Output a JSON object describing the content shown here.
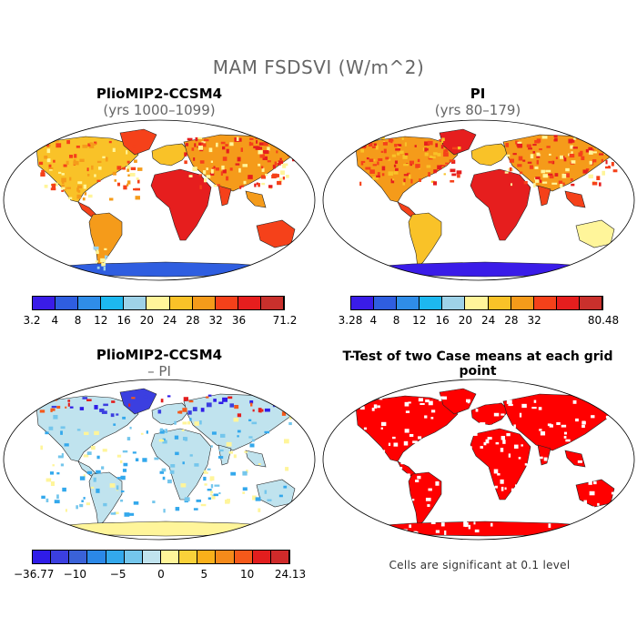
{
  "title": "MAM FSDSVI (W/m^2)",
  "panels": [
    {
      "title": "PlioMIP2-CCSM4",
      "subtitle": "(yrs 1000–1099)"
    },
    {
      "title": "PI",
      "subtitle": "(yrs 80–179)"
    },
    {
      "title": "PlioMIP2-CCSM4",
      "subtitle": "– PI"
    },
    {
      "title": "T-Test of two Case means at each grid point",
      "subtitle": ""
    }
  ],
  "note": "Cells are significant at 0.1 level",
  "chart_data": [
    {
      "type": "heatmap",
      "title": "PlioMIP2-CCSM4",
      "subtitle": "(yrs 1000–1099)",
      "colorbar": {
        "colors": [
          "#3a1ce8",
          "#2f5ee0",
          "#2f8de8",
          "#1db8f0",
          "#9ed2e8",
          "#fff59a",
          "#f9c228",
          "#f59b1a",
          "#f5411a",
          "#e61e1e",
          "#c9302c"
        ],
        "tick_labels": [
          "3.2",
          "4",
          "8",
          "12",
          "16",
          "20",
          "24",
          "28",
          "32",
          "36",
          "71.2"
        ]
      }
    },
    {
      "type": "heatmap",
      "title": "PI",
      "subtitle": "(yrs 80–179)",
      "colorbar": {
        "colors": [
          "#3a1ce8",
          "#2f5ee0",
          "#2f8de8",
          "#1db8f0",
          "#9ed2e8",
          "#fff59a",
          "#f9c228",
          "#f59b1a",
          "#f5411a",
          "#e61e1e",
          "#c9302c"
        ],
        "tick_labels": [
          "3.28",
          "4",
          "8",
          "12",
          "16",
          "20",
          "24",
          "28",
          "32",
          "",
          "80.48"
        ]
      }
    },
    {
      "type": "heatmap",
      "title": "PlioMIP2-CCSM4",
      "subtitle": "– PI",
      "colorbar": {
        "colors": [
          "#2f1ce8",
          "#3b3fe0",
          "#3a62d8",
          "#2b88e8",
          "#33a8ec",
          "#74c6ec",
          "#c0e3ee",
          "#fff59a",
          "#f9d23a",
          "#f9b01a",
          "#f58a1a",
          "#f5591a",
          "#e21e1e",
          "#cf2a2a"
        ],
        "tick_labels": [
          "−36.77",
          "−10",
          "−5",
          "0",
          "5",
          "10",
          "24.13"
        ]
      }
    },
    {
      "type": "heatmap",
      "title": "T-Test of two Case means at each grid point",
      "note": "Cells are significant at 0.1 level"
    }
  ]
}
